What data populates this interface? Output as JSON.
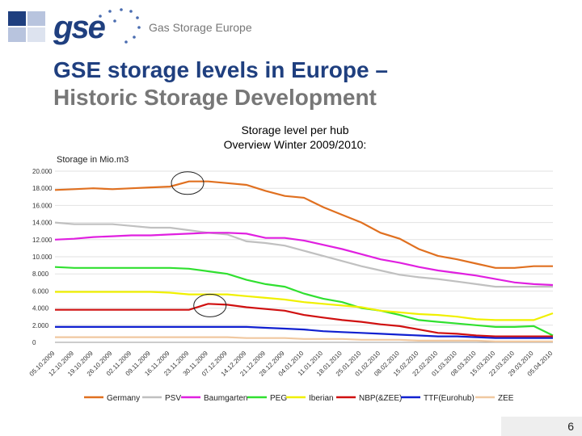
{
  "header": {
    "brand": "gse",
    "brand_name": "Gas Storage Europe",
    "title": "GSE storage levels in Europe –",
    "subtitle": "Historic Storage Development"
  },
  "chart_data": {
    "type": "line",
    "title_line1": "Storage level per hub",
    "title_line2": "Overview Winter 2009/2010:",
    "ylabel": "Storage in Mio.m3",
    "ylim": [
      0,
      20000
    ],
    "yticks": [
      "0",
      "2.000",
      "4.000",
      "6.000",
      "8.000",
      "10.000",
      "12.000",
      "14.000",
      "16.000",
      "18.000",
      "20.000"
    ],
    "categories": [
      "05.10.2009",
      "12.10.2009",
      "19.10.2009",
      "26.10.2009",
      "02.11.2009",
      "09.11.2009",
      "16.11.2009",
      "23.11.2009",
      "30.11.2009",
      "07.12.2009",
      "14.12.2009",
      "21.12.2009",
      "28.12.2009",
      "04.01.2010",
      "11.01.2010",
      "18.01.2010",
      "25.01.2010",
      "01.02.2010",
      "08.02.2010",
      "15.02.2010",
      "22.02.2010",
      "01.03.2010",
      "08.03.2010",
      "15.03.2010",
      "22.03.2010",
      "29.03.2010",
      "05.04.2010"
    ],
    "series": [
      {
        "name": "Germany",
        "color": "#e07020",
        "values": [
          17800,
          17900,
          18000,
          17900,
          18000,
          18100,
          18200,
          18800,
          18800,
          18600,
          18400,
          17700,
          17100,
          16900,
          15800,
          14900,
          14000,
          12800,
          12100,
          10900,
          10100,
          9700,
          9200,
          8700,
          8700,
          8900,
          8900
        ]
      },
      {
        "name": "PSV",
        "color": "#c0c0c0",
        "values": [
          14000,
          13800,
          13800,
          13800,
          13600,
          13400,
          13400,
          13100,
          12800,
          12600,
          11800,
          11600,
          11300,
          10700,
          10100,
          9500,
          8900,
          8400,
          7900,
          7600,
          7400,
          7100,
          6800,
          6500,
          6500,
          6500,
          6500
        ]
      },
      {
        "name": "Baumgarten",
        "color": "#e020e0",
        "values": [
          12000,
          12100,
          12300,
          12400,
          12500,
          12500,
          12600,
          12700,
          12800,
          12800,
          12700,
          12200,
          12200,
          11900,
          11400,
          10900,
          10300,
          9700,
          9300,
          8800,
          8400,
          8100,
          7800,
          7400,
          7000,
          6800,
          6700
        ]
      },
      {
        "name": "PEG",
        "color": "#30e030",
        "values": [
          8800,
          8700,
          8700,
          8700,
          8700,
          8700,
          8700,
          8600,
          8300,
          8000,
          7300,
          6800,
          6500,
          5700,
          5100,
          4700,
          4000,
          3700,
          3200,
          2600,
          2400,
          2200,
          2000,
          1800,
          1800,
          1900,
          800
        ]
      },
      {
        "name": "Iberian",
        "color": "#f0f000",
        "values": [
          5900,
          5900,
          5900,
          5900,
          5900,
          5900,
          5800,
          5600,
          5600,
          5600,
          5400,
          5200,
          5000,
          4700,
          4500,
          4300,
          4100,
          3700,
          3500,
          3300,
          3200,
          3000,
          2700,
          2600,
          2600,
          2600,
          3400
        ]
      },
      {
        "name": "NBP(&ZEE)",
        "color": "#d01010",
        "values": [
          3800,
          3800,
          3800,
          3800,
          3800,
          3800,
          3800,
          3800,
          4500,
          4400,
          4100,
          3900,
          3700,
          3200,
          2900,
          2600,
          2400,
          2100,
          1900,
          1500,
          1100,
          1000,
          800,
          700,
          700,
          700,
          700
        ]
      },
      {
        "name": "TTF(Eurohub)",
        "color": "#1020d0",
        "values": [
          1800,
          1800,
          1800,
          1800,
          1800,
          1800,
          1800,
          1800,
          1800,
          1800,
          1800,
          1700,
          1600,
          1500,
          1300,
          1200,
          1100,
          1000,
          900,
          800,
          700,
          700,
          600,
          500,
          500,
          500,
          500
        ]
      },
      {
        "name": "ZEE",
        "color": "#f0c8a0",
        "values": [
          600,
          600,
          600,
          600,
          600,
          600,
          600,
          600,
          600,
          600,
          500,
          500,
          500,
          400,
          400,
          400,
          300,
          300,
          300,
          200,
          200,
          200,
          200,
          100,
          100,
          100,
          100
        ]
      }
    ],
    "legend_position": "bottom"
  },
  "footer": {
    "page_number": "6"
  }
}
